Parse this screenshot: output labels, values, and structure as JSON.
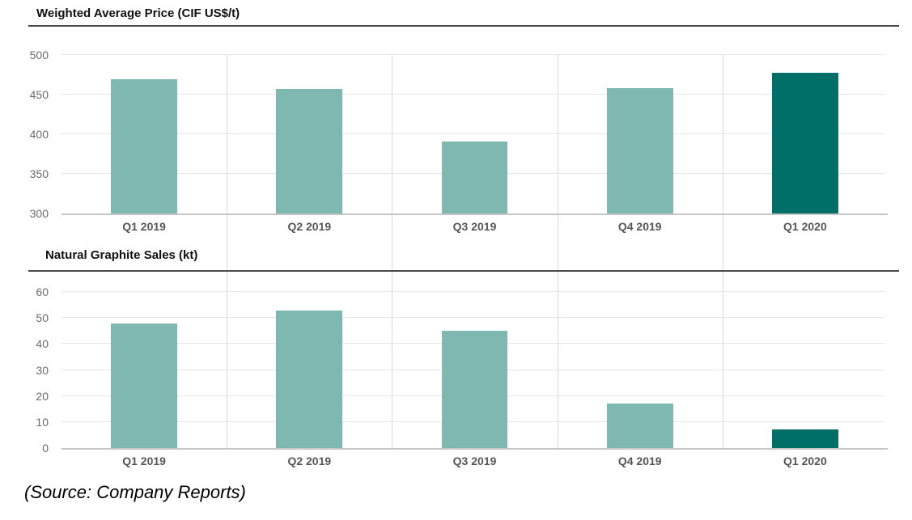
{
  "chart_data": [
    {
      "type": "bar",
      "title": "Weighted Average Price (CIF US$/t)",
      "categories": [
        "Q1 2019",
        "Q2 2019",
        "Q3 2019",
        "Q4 2019",
        "Q1 2020"
      ],
      "values": [
        469,
        457,
        391,
        458,
        478
      ],
      "ylim": [
        300,
        500
      ],
      "yticks": [
        300,
        350,
        400,
        450,
        500
      ],
      "bar_colors": [
        "#7FB8B1",
        "#7FB8B1",
        "#7FB8B1",
        "#7FB8B1",
        "#006F68"
      ],
      "xlabel": "",
      "ylabel": "",
      "grid": "horizontal gridlines with vertical column separators, legend none"
    },
    {
      "type": "bar",
      "title": "Natural Graphite Sales (kt)",
      "categories": [
        "Q1 2019",
        "Q2 2019",
        "Q3 2019",
        "Q4 2019",
        "Q1 2020"
      ],
      "values": [
        48,
        53,
        45,
        17,
        7
      ],
      "ylim": [
        0,
        60
      ],
      "yticks": [
        0,
        10,
        20,
        30,
        40,
        50,
        60
      ],
      "bar_colors": [
        "#7FB8B1",
        "#7FB8B1",
        "#7FB8B1",
        "#7FB8B1",
        "#006F68"
      ],
      "xlabel": "",
      "ylabel": "",
      "grid": "horizontal gridlines with vertical column separators, legend none"
    }
  ],
  "source_note": "(Source: Company Reports)",
  "colors": {
    "bar_regular": "#7FB8B1",
    "bar_highlight": "#006F68",
    "gridline": "#e7e7e7",
    "divider_rule": "#4a4a4a"
  }
}
